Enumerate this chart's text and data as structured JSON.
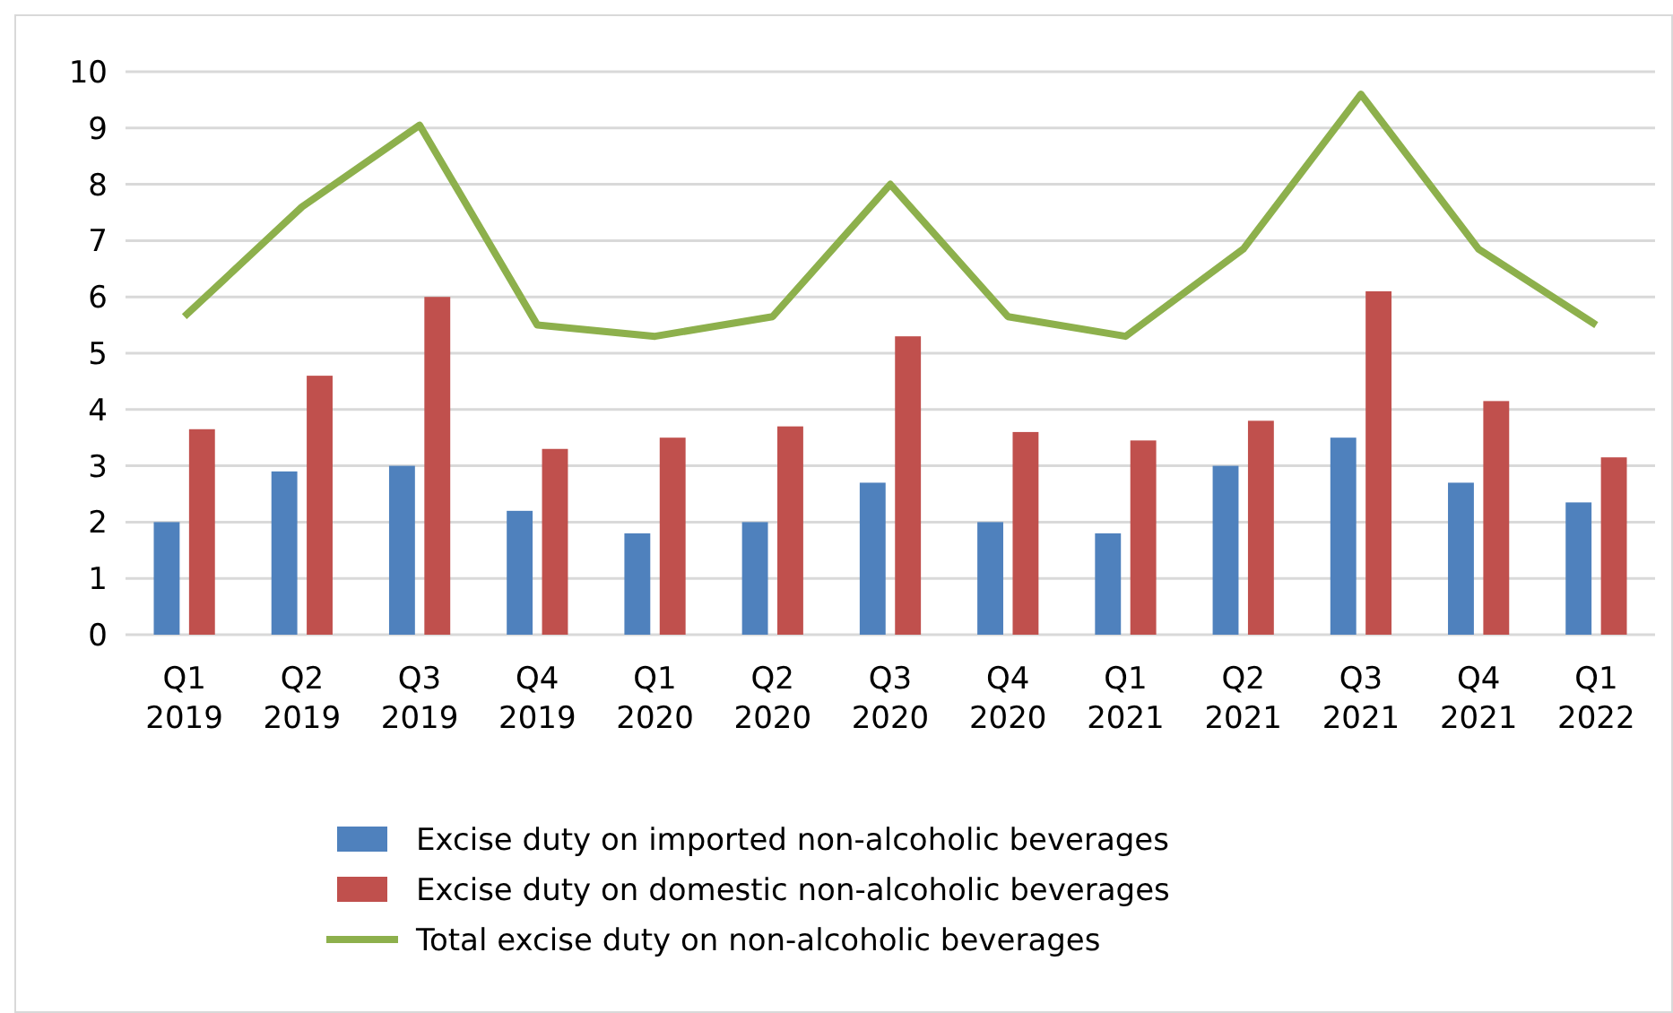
{
  "chart_data": {
    "type": "bar",
    "categories": [
      "Q1\n2019",
      "Q2\n2019",
      "Q3\n2019",
      "Q4\n2019",
      "Q1\n2020",
      "Q2\n2020",
      "Q3\n2020",
      "Q4\n2020",
      "Q1\n2021",
      "Q2\n2021",
      "Q3\n2021",
      "Q4\n2021",
      "Q1\n2022"
    ],
    "series": [
      {
        "name": "Excise duty on imported non-alcoholic beverages",
        "color": "#4f81bd",
        "values": [
          2.0,
          2.9,
          3.0,
          2.2,
          1.8,
          2.0,
          2.7,
          2.0,
          1.8,
          3.0,
          3.5,
          2.7,
          2.35
        ]
      },
      {
        "name": "Excise duty on domestic non-alcoholic beverages",
        "color": "#c0504d",
        "values": [
          3.65,
          4.6,
          6.0,
          3.3,
          3.5,
          3.7,
          5.3,
          3.6,
          3.45,
          3.8,
          6.1,
          4.15,
          3.15
        ]
      },
      {
        "name": "Total excise duty on non-alcoholic beverages",
        "type": "line",
        "color": "#8db04c",
        "values": [
          5.65,
          7.6,
          9.05,
          5.5,
          5.3,
          5.65,
          8.0,
          5.65,
          5.3,
          6.85,
          9.6,
          6.85,
          5.5
        ]
      }
    ],
    "ylim": [
      0,
      10
    ],
    "yticks": [
      0,
      1,
      2,
      3,
      4,
      5,
      6,
      7,
      8,
      9,
      10
    ],
    "grid": "y",
    "legend": "bottom",
    "marker": "none"
  }
}
